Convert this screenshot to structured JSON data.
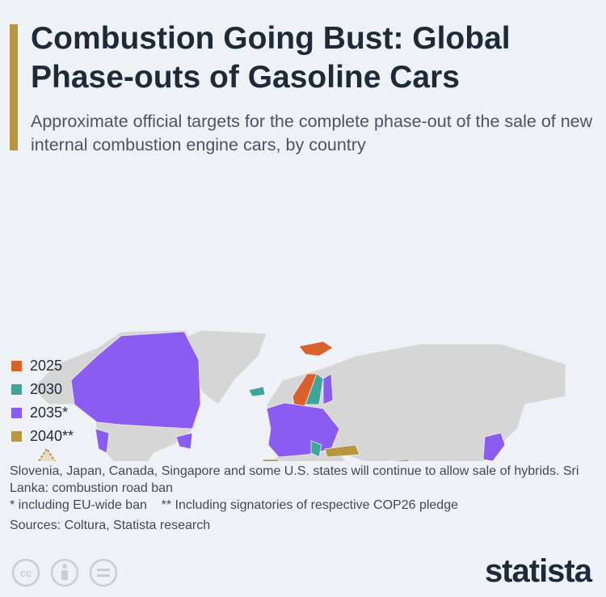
{
  "header": {
    "title": "Combustion Going Bust: Global Phase-outs of Gasoline Cars",
    "subtitle": "Approximate official targets for the complete phase-out of the sale of new internal combustion engine cars, by country"
  },
  "legend": [
    {
      "label": "2025",
      "color": "#d9622b"
    },
    {
      "label": "2030",
      "color": "#3fa59a"
    },
    {
      "label": "2035*",
      "color": "#8b5cf0"
    },
    {
      "label": "2040**",
      "color": "#b8963e"
    }
  ],
  "notes": [
    "Slovenia, Japan, Canada, Singapore and some U.S. states will continue to allow sale of hybrids. Sri Lanka: combustion road ban",
    "* including EU-wide ban    ** Including signatories of respective COP26 pledge",
    "Sources: Coltura, Statista research"
  ],
  "footer": {
    "logo": "statista"
  }
}
